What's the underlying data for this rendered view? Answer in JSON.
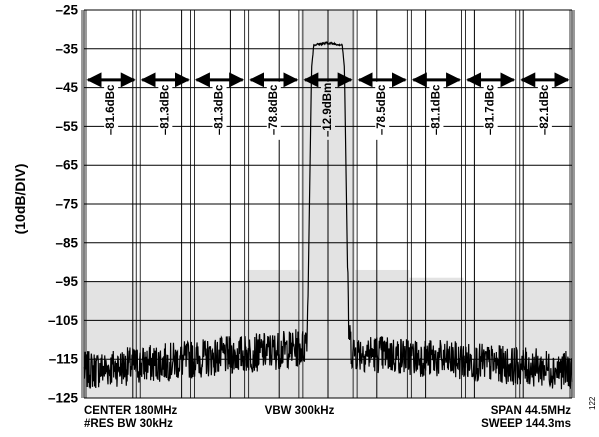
{
  "chart_data": {
    "type": "line",
    "ylabel": "(10dB/DIV)",
    "ylim": [
      -125,
      -25
    ],
    "yticks": [
      "–25",
      "–35",
      "–45",
      "–55",
      "–65",
      "–75",
      "–85",
      "–95",
      "–105",
      "–115",
      "–125"
    ],
    "xlim": [
      157.75,
      202.25
    ],
    "x_unit": "MHz",
    "grid": true,
    "channels": {
      "count": 9,
      "width_mhz": 4.45,
      "labels": [
        "–81.6dBc",
        "–81.3dBc",
        "–81.3dBc",
        "–78.8dBc",
        "–12.9dBm",
        "–78.5dBc",
        "–81.1dBc",
        "–81.7dBc",
        "–82.1dBc"
      ],
      "arrow_level": -43,
      "mask_levels": [
        -95,
        -95,
        -95,
        -92,
        -25,
        -92,
        -94,
        -95,
        -95
      ],
      "mask_color": "#e3e3e3"
    },
    "series": [
      {
        "x": [
          157.75,
          177.8,
          178.1,
          178.2,
          178.5,
          178.7,
          180.0,
          181.3,
          181.5,
          181.8,
          181.9,
          182.2,
          202.25
        ],
        "values": [
          -118,
          -112,
          -108,
          -95,
          -40,
          -34,
          -33.5,
          -34,
          -40,
          -95,
          -108,
          -113,
          -118
        ],
        "noise_floor": -117,
        "noise_pp": 5,
        "color": "#000000"
      }
    ]
  },
  "footer": {
    "center": "CENTER 180MHz",
    "rbw": "#RES BW 30kHz",
    "vbw": "VBW 300kHz",
    "span": "SPAN 44.5MHz",
    "sweep": "SWEEP 144.3ms"
  },
  "figure_number": "122"
}
